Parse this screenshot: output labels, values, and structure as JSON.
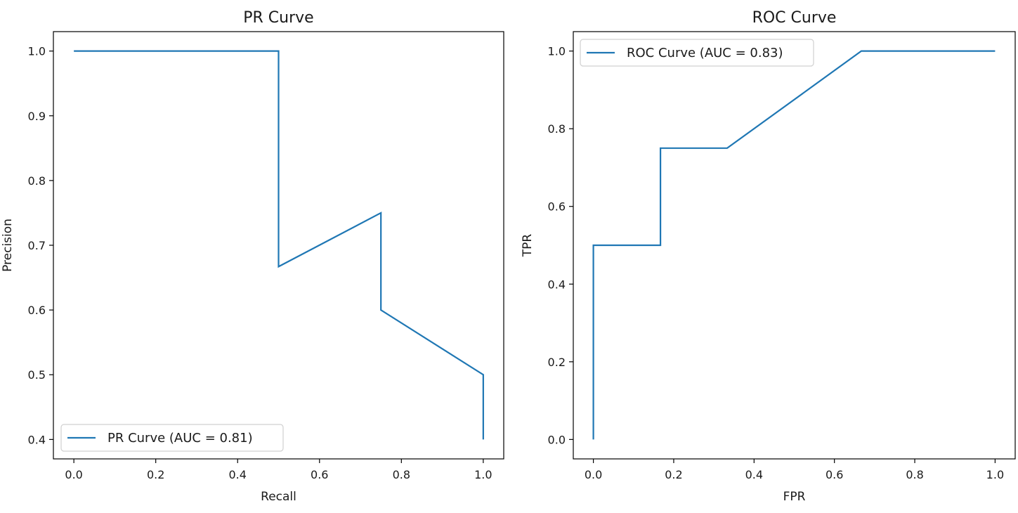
{
  "chart_data": [
    {
      "type": "line",
      "title": "PR Curve",
      "xlabel": "Recall",
      "ylabel": "Precision",
      "xlim": [
        -0.05,
        1.05
      ],
      "ylim": [
        0.37,
        1.03
      ],
      "xticks": [
        0.0,
        0.2,
        0.4,
        0.6,
        0.8,
        1.0
      ],
      "yticks": [
        0.4,
        0.5,
        0.6,
        0.7,
        0.8,
        0.9,
        1.0
      ],
      "xtick_labels": [
        "0.0",
        "0.2",
        "0.4",
        "0.6",
        "0.8",
        "1.0"
      ],
      "ytick_labels": [
        "0.4",
        "0.5",
        "0.6",
        "0.7",
        "0.8",
        "0.9",
        "1.0"
      ],
      "grid": false,
      "legend_position": "lower-left",
      "series": [
        {
          "name": "PR Curve (AUC = 0.81)",
          "color": "#1f77b4",
          "x": [
            0.0,
            0.5,
            0.5,
            0.75,
            0.75,
            1.0,
            1.0
          ],
          "y": [
            1.0,
            1.0,
            0.667,
            0.75,
            0.6,
            0.5,
            0.4
          ]
        }
      ]
    },
    {
      "type": "line",
      "title": "ROC Curve",
      "xlabel": "FPR",
      "ylabel": "TPR",
      "xlim": [
        -0.05,
        1.05
      ],
      "ylim": [
        -0.05,
        1.05
      ],
      "xticks": [
        0.0,
        0.2,
        0.4,
        0.6,
        0.8,
        1.0
      ],
      "yticks": [
        0.0,
        0.2,
        0.4,
        0.6,
        0.8,
        1.0
      ],
      "xtick_labels": [
        "0.0",
        "0.2",
        "0.4",
        "0.6",
        "0.8",
        "1.0"
      ],
      "ytick_labels": [
        "0.0",
        "0.2",
        "0.4",
        "0.6",
        "0.8",
        "1.0"
      ],
      "grid": false,
      "legend_position": "upper-left",
      "series": [
        {
          "name": "ROC Curve (AUC = 0.83)",
          "color": "#1f77b4",
          "x": [
            0.0,
            0.0,
            0.167,
            0.167,
            0.333,
            0.667,
            1.0
          ],
          "y": [
            0.0,
            0.5,
            0.5,
            0.75,
            0.75,
            1.0,
            1.0
          ]
        }
      ]
    }
  ]
}
